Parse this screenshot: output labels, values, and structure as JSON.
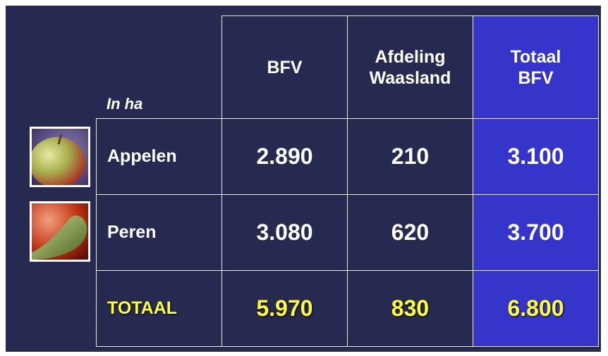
{
  "table": {
    "unit": "In ha",
    "header": [
      [
        "BFV"
      ],
      [
        "Afdeling",
        "Waasland"
      ],
      [
        "Totaal",
        "BFV"
      ]
    ],
    "rows": [
      [
        "Appelen",
        "2.890",
        "210",
        "3.100"
      ],
      [
        "Peren",
        "3.080",
        "620",
        "3.700"
      ],
      [
        "TOTAAL",
        "5.970",
        "830",
        "6.800"
      ]
    ]
  }
}
